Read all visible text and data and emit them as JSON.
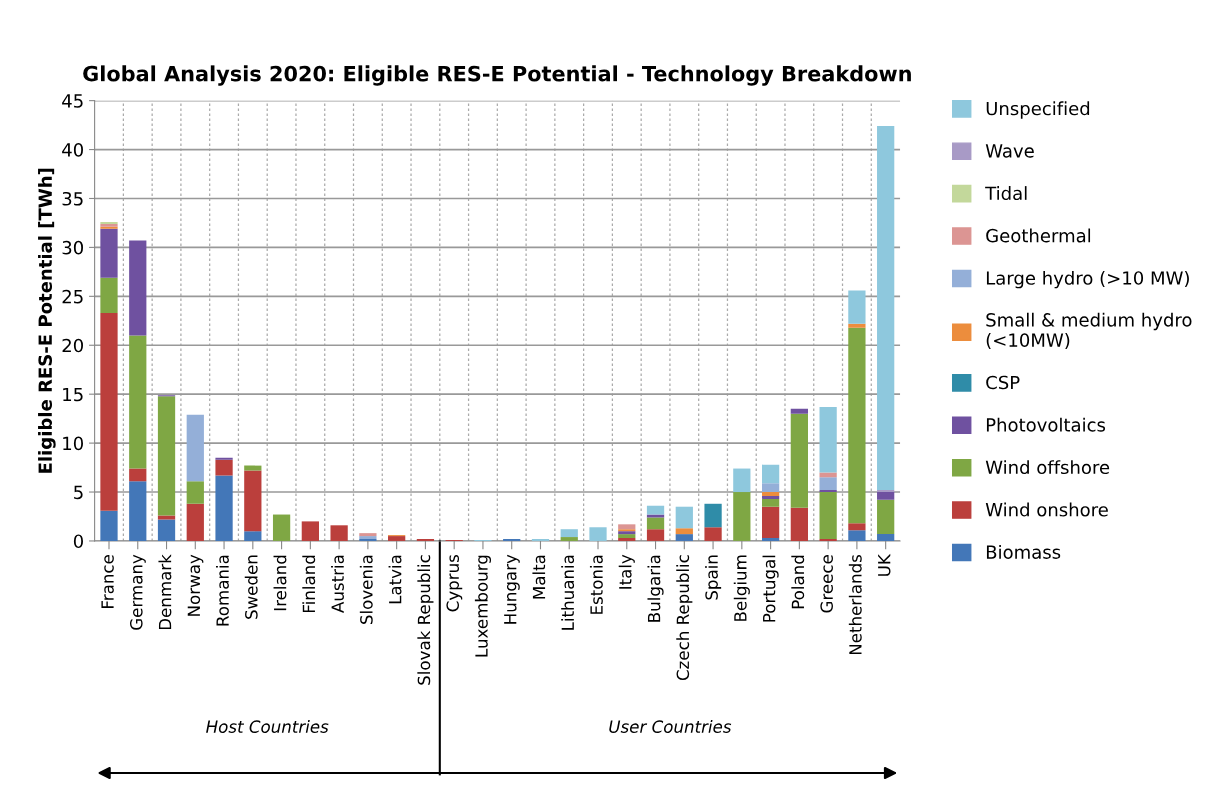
{
  "chart_data": {
    "type": "bar",
    "stacked": true,
    "title": "Global Analysis 2020: Eligible RES-E Potential - Technology Breakdown",
    "ylabel": "Eligible RES-E Potential [TWh]",
    "categories": [
      "France",
      "Germany",
      "Denmark",
      "Norway",
      "Romania",
      "Sweden",
      "Ireland",
      "Finland",
      "Austria",
      "Slovenia",
      "Latvia",
      "Slovak Republic",
      "Cyprus",
      "Luxembourg",
      "Hungary",
      "Malta",
      "Lithuania",
      "Estonia",
      "Italy",
      "Bulgaria",
      "Czech Republic",
      "Spain",
      "Belgium",
      "Portugal",
      "Poland",
      "Greece",
      "Netherlands",
      "UK"
    ],
    "series": [
      {
        "name": "Biomass",
        "color": "#4377b8",
        "values": [
          3.1,
          6.1,
          2.2,
          0,
          6.7,
          1.0,
          0,
          0,
          0,
          0.2,
          0,
          0,
          0,
          0,
          0.2,
          0,
          0,
          0,
          0,
          0,
          0.7,
          0,
          0,
          0.3,
          0,
          0,
          1.1,
          0.7
        ]
      },
      {
        "name": "Wind onshore",
        "color": "#bb3f3c",
        "values": [
          20.2,
          1.3,
          0.4,
          3.8,
          1.6,
          6.2,
          0,
          2.0,
          1.6,
          0,
          0.5,
          0.2,
          0.1,
          0,
          0,
          0,
          0,
          0,
          0.3,
          1.2,
          0,
          1.4,
          0,
          3.2,
          3.4,
          0.2,
          0.7,
          0
        ]
      },
      {
        "name": "Wind offshore",
        "color": "#7fa744",
        "values": [
          3.6,
          13.6,
          12.2,
          2.3,
          0,
          0.5,
          2.7,
          0,
          0,
          0,
          0,
          0,
          0,
          0,
          0,
          0,
          0.4,
          0,
          0.4,
          1.2,
          0,
          0,
          5.0,
          0.8,
          9.6,
          4.8,
          20.0,
          3.5
        ]
      },
      {
        "name": "Photovoltaics",
        "color": "#6f51a0",
        "values": [
          5.0,
          9.7,
          0.1,
          0,
          0.2,
          0,
          0,
          0,
          0,
          0,
          0,
          0,
          0,
          0,
          0,
          0,
          0,
          0,
          0.3,
          0.3,
          0,
          0,
          0,
          0.3,
          0.5,
          0.2,
          0,
          0.8
        ]
      },
      {
        "name": "CSP",
        "color": "#2f8ca8",
        "values": [
          0,
          0,
          0,
          0,
          0,
          0,
          0,
          0,
          0,
          0,
          0,
          0,
          0,
          0,
          0,
          0,
          0,
          0,
          0,
          0,
          0,
          2.4,
          0,
          0,
          0,
          0,
          0,
          0
        ]
      },
      {
        "name": "Small & medium hydro\n(<10MW)",
        "color": "#ec8d3d",
        "values": [
          0.2,
          0,
          0,
          0,
          0,
          0,
          0,
          0,
          0,
          0,
          0.1,
          0,
          0,
          0,
          0,
          0,
          0,
          0,
          0.2,
          0,
          0.6,
          0,
          0,
          0.4,
          0,
          0,
          0.4,
          0
        ]
      },
      {
        "name": "Large hydro (>10 MW)",
        "color": "#94afd8",
        "values": [
          0,
          0,
          0,
          6.8,
          0,
          0,
          0,
          0,
          0,
          0.3,
          0,
          0,
          0,
          0,
          0,
          0,
          0,
          0,
          0,
          0,
          0,
          0,
          0,
          0.9,
          0,
          1.3,
          0,
          0
        ]
      },
      {
        "name": "Geothermal",
        "color": "#dc9593",
        "values": [
          0.3,
          0,
          0,
          0,
          0,
          0,
          0,
          0,
          0,
          0.3,
          0,
          0,
          0,
          0,
          0,
          0,
          0,
          0,
          0.5,
          0,
          0,
          0,
          0,
          0,
          0,
          0.5,
          0,
          0
        ]
      },
      {
        "name": "Tidal",
        "color": "#c3d89b",
        "values": [
          0.2,
          0,
          0,
          0,
          0,
          0,
          0,
          0,
          0,
          0,
          0,
          0,
          0,
          0,
          0,
          0,
          0,
          0,
          0,
          0,
          0,
          0,
          0,
          0,
          0,
          0,
          0,
          0
        ]
      },
      {
        "name": "Wave",
        "color": "#a89ac6",
        "values": [
          0,
          0,
          0,
          0,
          0,
          0,
          0,
          0,
          0,
          0,
          0,
          0,
          0,
          0,
          0,
          0,
          0,
          0,
          0,
          0,
          0,
          0,
          0,
          0,
          0,
          0,
          0,
          0.2
        ]
      },
      {
        "name": "Unspecified",
        "color": "#8ec8dd",
        "values": [
          0,
          0,
          0,
          0,
          0,
          0,
          0,
          0,
          0,
          0,
          0,
          0,
          0,
          0.1,
          0,
          0.2,
          0.8,
          1.4,
          0,
          0.9,
          2.2,
          0,
          2.4,
          1.9,
          0,
          6.7,
          3.4,
          37.2
        ]
      }
    ],
    "ylim": [
      0,
      45
    ],
    "yticks": [
      0,
      5,
      10,
      15,
      20,
      25,
      30,
      35,
      40,
      45
    ],
    "grid": true,
    "legend": "right",
    "annotations": [
      "Host Countries",
      "User Countries"
    ]
  }
}
